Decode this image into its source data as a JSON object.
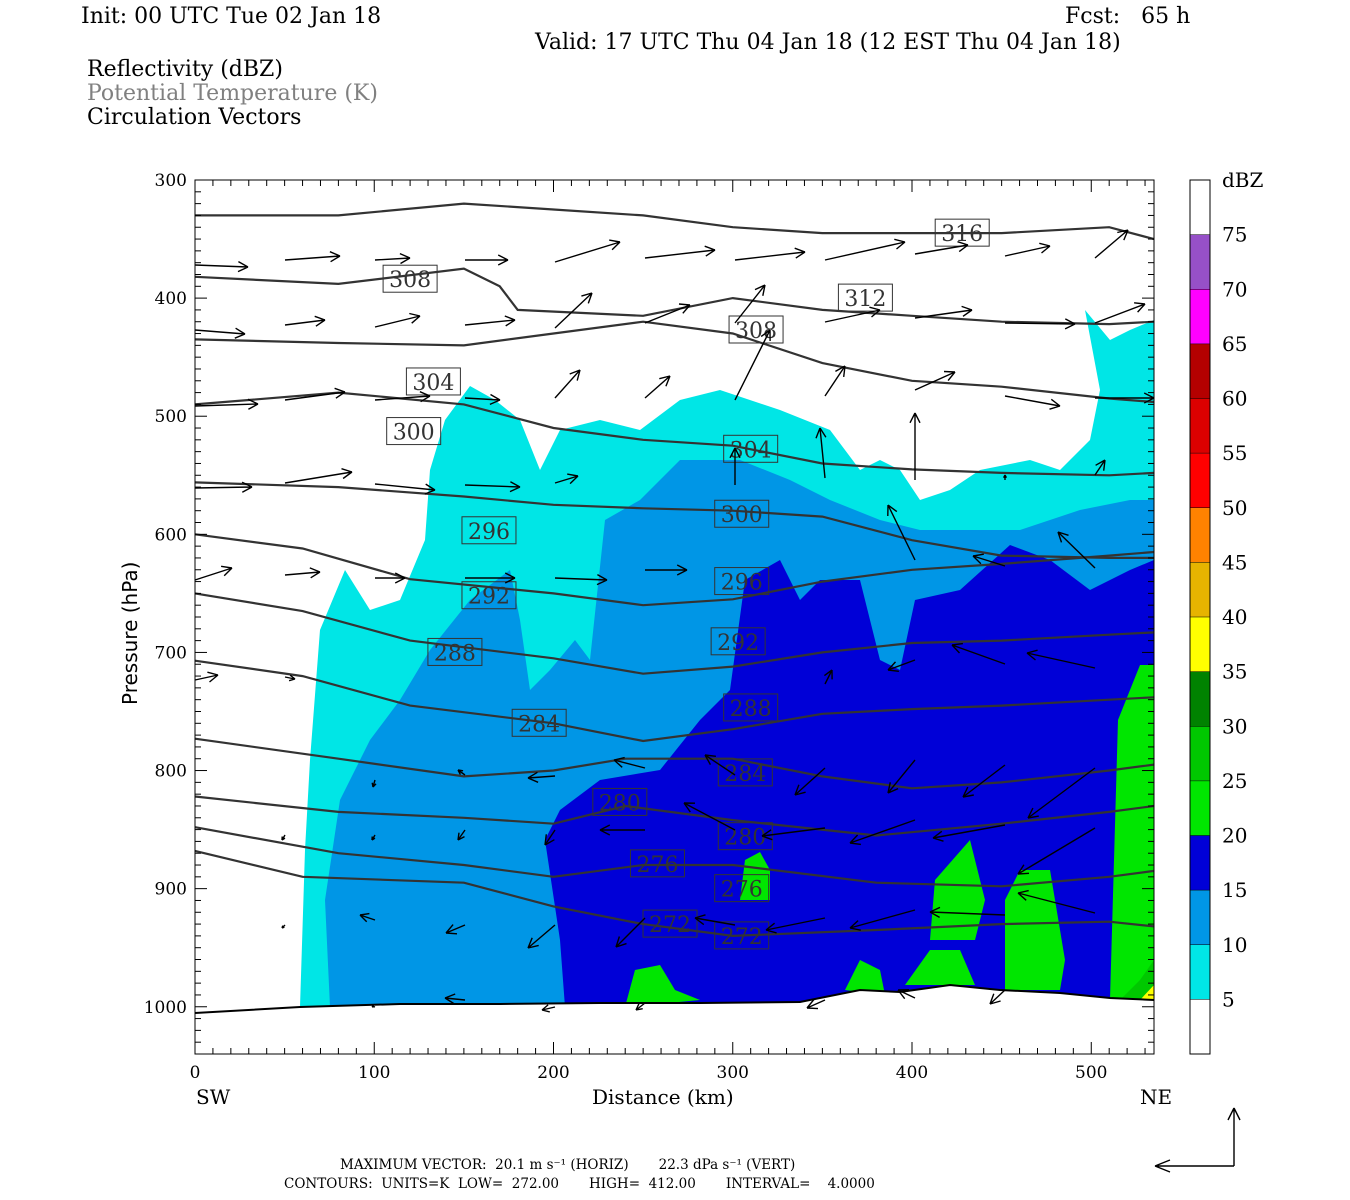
{
  "header": {
    "init": "Init: 00 UTC Tue 02 Jan 18",
    "fcst": "Fcst:   65 h",
    "valid": "Valid: 17 UTC Thu 04 Jan 18 (12 EST Thu 04 Jan 18)",
    "field1": "Reflectivity (dBZ)",
    "field2": "Potential Temperature (K)",
    "field3": "Circulation Vectors"
  },
  "axes": {
    "xlabel": "Distance (km)",
    "ylabel": "Pressure (hPa)",
    "left_end": "SW",
    "right_end": "NE"
  },
  "footer": {
    "max_vector": "MAXIMUM VECTOR:  20.1 m s⁻¹ (HORIZ)       22.3 dPa s⁻¹ (VERT)",
    "contours": "CONTOURS:  UNITS=K  LOW=  272.00       HIGH=  412.00       INTERVAL=    4.0000"
  },
  "colorbar": {
    "unit": "dBZ",
    "levels": [
      5,
      10,
      15,
      20,
      25,
      30,
      35,
      40,
      45,
      50,
      55,
      60,
      65,
      70,
      75
    ],
    "colors": [
      "#ffffff",
      "#00e6e6",
      "#0096e6",
      "#0000d7",
      "#00e600",
      "#00c800",
      "#008200",
      "#ffff00",
      "#e6b400",
      "#ff8200",
      "#ff0000",
      "#dc0000",
      "#b40000",
      "#ff00ff",
      "#9650c8",
      "#ffffff"
    ]
  },
  "chart_data": {
    "type": "heatmap",
    "title": "Reflectivity (dBZ), Potential Temperature (K), Circulation Vectors",
    "xlabel": "Distance (km)",
    "ylabel": "Pressure (hPa)",
    "xlim": [
      0,
      535
    ],
    "ylim": [
      1040,
      300
    ],
    "x_ticks": [
      0,
      100,
      200,
      300,
      400,
      500
    ],
    "y_ticks": [
      300,
      400,
      500,
      600,
      700,
      800,
      900,
      1000
    ],
    "theta_contours": [
      {
        "level": 272,
        "label_positions": [
          [
            265,
            930
          ],
          [
            305,
            940
          ]
        ],
        "points": [
          [
            0,
            868
          ],
          [
            60,
            890
          ],
          [
            150,
            895
          ],
          [
            200,
            915
          ],
          [
            250,
            930
          ],
          [
            300,
            940
          ],
          [
            380,
            935
          ],
          [
            450,
            930
          ],
          [
            510,
            928
          ],
          [
            535,
            932
          ]
        ]
      },
      {
        "level": 276,
        "label_positions": [
          [
            258,
            879
          ],
          [
            305,
            900
          ]
        ],
        "points": [
          [
            0,
            848
          ],
          [
            80,
            870
          ],
          [
            150,
            880
          ],
          [
            200,
            890
          ],
          [
            250,
            880
          ],
          [
            300,
            880
          ],
          [
            380,
            895
          ],
          [
            450,
            898
          ],
          [
            510,
            890
          ],
          [
            535,
            885
          ]
        ]
      },
      {
        "level": 280,
        "label_positions": [
          [
            237,
            827
          ],
          [
            307,
            856
          ]
        ],
        "points": [
          [
            0,
            822
          ],
          [
            80,
            835
          ],
          [
            150,
            840
          ],
          [
            200,
            845
          ],
          [
            240,
            830
          ],
          [
            300,
            842
          ],
          [
            380,
            855
          ],
          [
            450,
            845
          ],
          [
            510,
            835
          ],
          [
            535,
            830
          ]
        ]
      },
      {
        "level": 284,
        "label_positions": [
          [
            192,
            760
          ],
          [
            307,
            802
          ]
        ],
        "points": [
          [
            0,
            773
          ],
          [
            80,
            790
          ],
          [
            150,
            805
          ],
          [
            200,
            800
          ],
          [
            240,
            790
          ],
          [
            300,
            790
          ],
          [
            350,
            805
          ],
          [
            400,
            815
          ],
          [
            450,
            810
          ],
          [
            510,
            800
          ],
          [
            535,
            795
          ]
        ]
      },
      {
        "level": 288,
        "label_positions": [
          [
            145,
            700
          ],
          [
            310,
            747
          ]
        ],
        "points": [
          [
            0,
            707
          ],
          [
            60,
            720
          ],
          [
            120,
            745
          ],
          [
            200,
            760
          ],
          [
            250,
            775
          ],
          [
            300,
            765
          ],
          [
            350,
            752
          ],
          [
            400,
            748
          ],
          [
            450,
            745
          ],
          [
            510,
            740
          ],
          [
            535,
            738
          ]
        ]
      },
      {
        "level": 292,
        "label_positions": [
          [
            164,
            652
          ],
          [
            303,
            691
          ]
        ],
        "points": [
          [
            0,
            650
          ],
          [
            60,
            665
          ],
          [
            120,
            690
          ],
          [
            200,
            705
          ],
          [
            250,
            718
          ],
          [
            300,
            712
          ],
          [
            350,
            700
          ],
          [
            400,
            692
          ],
          [
            450,
            690
          ],
          [
            510,
            685
          ],
          [
            535,
            683
          ]
        ]
      },
      {
        "level": 296,
        "label_positions": [
          [
            164,
            597
          ],
          [
            305,
            640
          ]
        ],
        "points": [
          [
            0,
            600
          ],
          [
            60,
            612
          ],
          [
            120,
            638
          ],
          [
            200,
            650
          ],
          [
            250,
            660
          ],
          [
            300,
            655
          ],
          [
            350,
            640
          ],
          [
            400,
            630
          ],
          [
            450,
            625
          ],
          [
            510,
            618
          ],
          [
            535,
            615
          ]
        ]
      },
      {
        "level": 300,
        "label_positions": [
          [
            122,
            513
          ],
          [
            305,
            583
          ]
        ],
        "points": [
          [
            0,
            556
          ],
          [
            80,
            560
          ],
          [
            150,
            568
          ],
          [
            200,
            575
          ],
          [
            250,
            578
          ],
          [
            300,
            580
          ],
          [
            350,
            585
          ],
          [
            400,
            605
          ],
          [
            450,
            618
          ],
          [
            510,
            620
          ],
          [
            535,
            620
          ]
        ]
      },
      {
        "level": 304,
        "label_positions": [
          [
            133,
            471
          ],
          [
            310,
            528
          ]
        ],
        "points": [
          [
            0,
            490
          ],
          [
            80,
            480
          ],
          [
            150,
            490
          ],
          [
            200,
            510
          ],
          [
            250,
            520
          ],
          [
            300,
            525
          ],
          [
            350,
            540
          ],
          [
            400,
            545
          ],
          [
            450,
            548
          ],
          [
            510,
            550
          ],
          [
            535,
            548
          ]
        ]
      },
      {
        "level": 308,
        "label_positions": [
          [
            120,
            384
          ],
          [
            313,
            427
          ]
        ],
        "points": [
          [
            0,
            435
          ],
          [
            80,
            438
          ],
          [
            150,
            440
          ],
          [
            200,
            430
          ],
          [
            250,
            420
          ],
          [
            300,
            430
          ],
          [
            350,
            455
          ],
          [
            400,
            470
          ],
          [
            450,
            475
          ],
          [
            510,
            485
          ],
          [
            535,
            488
          ]
        ]
      },
      {
        "level": 312,
        "label_positions": [
          [
            374,
            400
          ]
        ],
        "points": [
          [
            0,
            382
          ],
          [
            80,
            388
          ],
          [
            150,
            375
          ],
          [
            170,
            390
          ],
          [
            180,
            410
          ],
          [
            250,
            415
          ],
          [
            300,
            400
          ],
          [
            350,
            410
          ],
          [
            400,
            415
          ],
          [
            450,
            420
          ],
          [
            510,
            422
          ],
          [
            535,
            420
          ]
        ]
      },
      {
        "level": 316,
        "label_positions": [
          [
            428,
            345
          ]
        ],
        "points": [
          [
            0,
            330
          ],
          [
            80,
            330
          ],
          [
            150,
            320
          ],
          [
            200,
            325
          ],
          [
            250,
            330
          ],
          [
            300,
            340
          ],
          [
            350,
            345
          ],
          [
            400,
            345
          ],
          [
            450,
            345
          ],
          [
            510,
            340
          ],
          [
            535,
            350
          ]
        ]
      }
    ],
    "reflectivity_regions": [
      {
        "dbz_min": 5,
        "dbz_max": 10,
        "description": "light echo region from ~65 km to 535 km, top near 470-500 hPa"
      },
      {
        "dbz_min": 10,
        "dbz_max": 15,
        "description": "echo deepening eastward, top near 560-600 hPa"
      },
      {
        "dbz_min": 15,
        "dbz_max": 20,
        "description": "main band from ~195 km to 535 km below ~650 hPa"
      },
      {
        "dbz_min": 20,
        "dbz_max": 25,
        "description": "embedded cells near surface and near 520 km"
      }
    ],
    "vectors_max": {
      "horiz": "20.1 m s-1",
      "vert": "22.3 dPa s-1"
    }
  }
}
